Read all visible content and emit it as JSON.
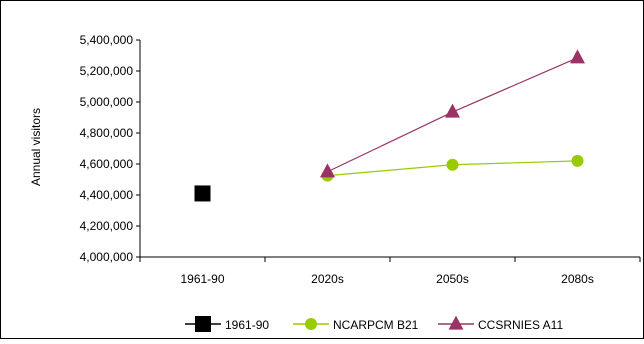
{
  "chart_data": {
    "type": "line",
    "title": "",
    "xlabel": "",
    "ylabel": "Annual visitors",
    "categories": [
      "1961-90",
      "2020s",
      "2050s",
      "2080s"
    ],
    "ylim": [
      4000000,
      5400000
    ],
    "ytick_step": 200000,
    "ytick_labels": [
      "4,000,000",
      "4,200,000",
      "4,400,000",
      "4,600,000",
      "4,800,000",
      "5,000,000",
      "5,200,000",
      "5,400,000"
    ],
    "grid": false,
    "legend_position": "bottom",
    "series": [
      {
        "name": "1961-90",
        "values": [
          4410000,
          null,
          null,
          null
        ],
        "color": "#000000",
        "marker": "square"
      },
      {
        "name": "NCARPCM B21",
        "values": [
          null,
          4525000,
          4595000,
          4620000
        ],
        "color": "#99CC00",
        "marker": "circle"
      },
      {
        "name": "CCSRNIES A11",
        "values": [
          null,
          4550000,
          4935000,
          5285000
        ],
        "color": "#993366",
        "marker": "triangle"
      }
    ]
  }
}
